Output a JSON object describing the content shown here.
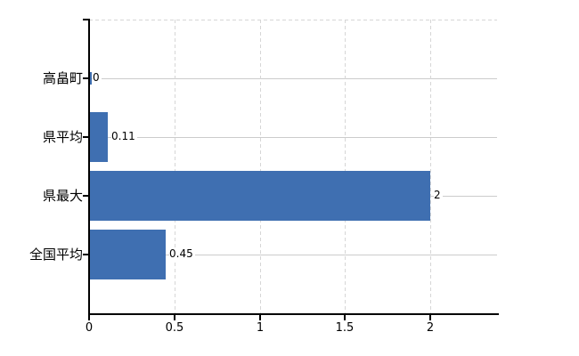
{
  "chart_data": {
    "type": "bar",
    "orientation": "horizontal",
    "title": "",
    "xlabel": "",
    "ylabel": "",
    "categories": [
      "高畠町",
      "県平均",
      "県最大",
      "全国平均"
    ],
    "values": [
      0,
      0.11,
      2,
      0.45
    ],
    "value_labels": [
      "0",
      "0.11",
      "2",
      "0.45"
    ],
    "xticks": [
      0,
      0.5,
      1,
      1.5,
      2
    ],
    "xtick_labels": [
      "0",
      "0.5",
      "1",
      "1.5",
      "2"
    ],
    "xlim": [
      0,
      2.4
    ],
    "grid": "on",
    "legend": "none",
    "colors": {
      "bar": "#3f6fb1",
      "axis": "#000000",
      "gridline": "#cccccc",
      "dashed_gridline": "#d6d6d6",
      "text": "#000000",
      "background": "#ffffff"
    }
  }
}
